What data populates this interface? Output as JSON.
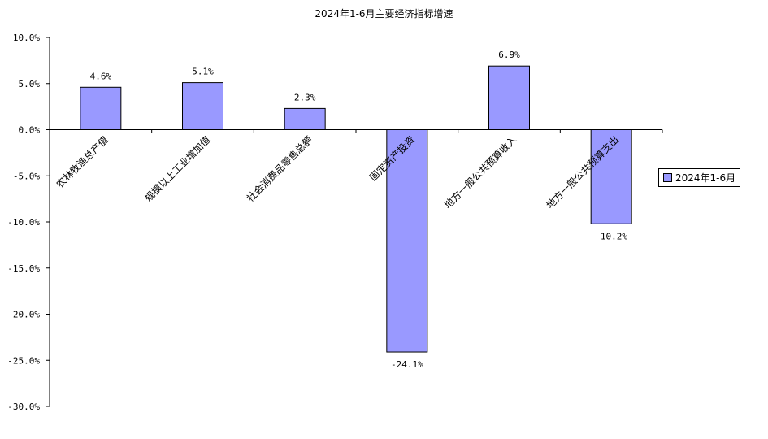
{
  "chart_data": {
    "type": "bar",
    "title": "2024年1-6月主要经济指标增速",
    "categories": [
      "农林牧渔总产值",
      "规模以上工业增加值",
      "社会消费品零售总额",
      "固定资产投资",
      "地方一般公共预算收入",
      "地方一般公共预算支出"
    ],
    "series": [
      {
        "name": "2024年1-6月",
        "values": [
          4.6,
          5.1,
          2.3,
          -24.1,
          6.9,
          -10.2
        ]
      }
    ],
    "data_labels": [
      "4.6%",
      "5.1%",
      "2.3%",
      "-24.1%",
      "6.9%",
      "-10.2%"
    ],
    "ylim": [
      -30,
      10
    ],
    "yticks": [
      10,
      5,
      0,
      -5,
      -10,
      -15,
      -20,
      -25,
      -30
    ],
    "ytick_labels": [
      "10.0%",
      "5.0%",
      "0.0%",
      "-5.0%",
      "-10.0%",
      "-15.0%",
      "-20.0%",
      "-25.0%",
      "-30.0%"
    ],
    "xlabel": "",
    "ylabel": "",
    "legend_position": "right",
    "grid": false,
    "bar_color": "#9999ff"
  }
}
